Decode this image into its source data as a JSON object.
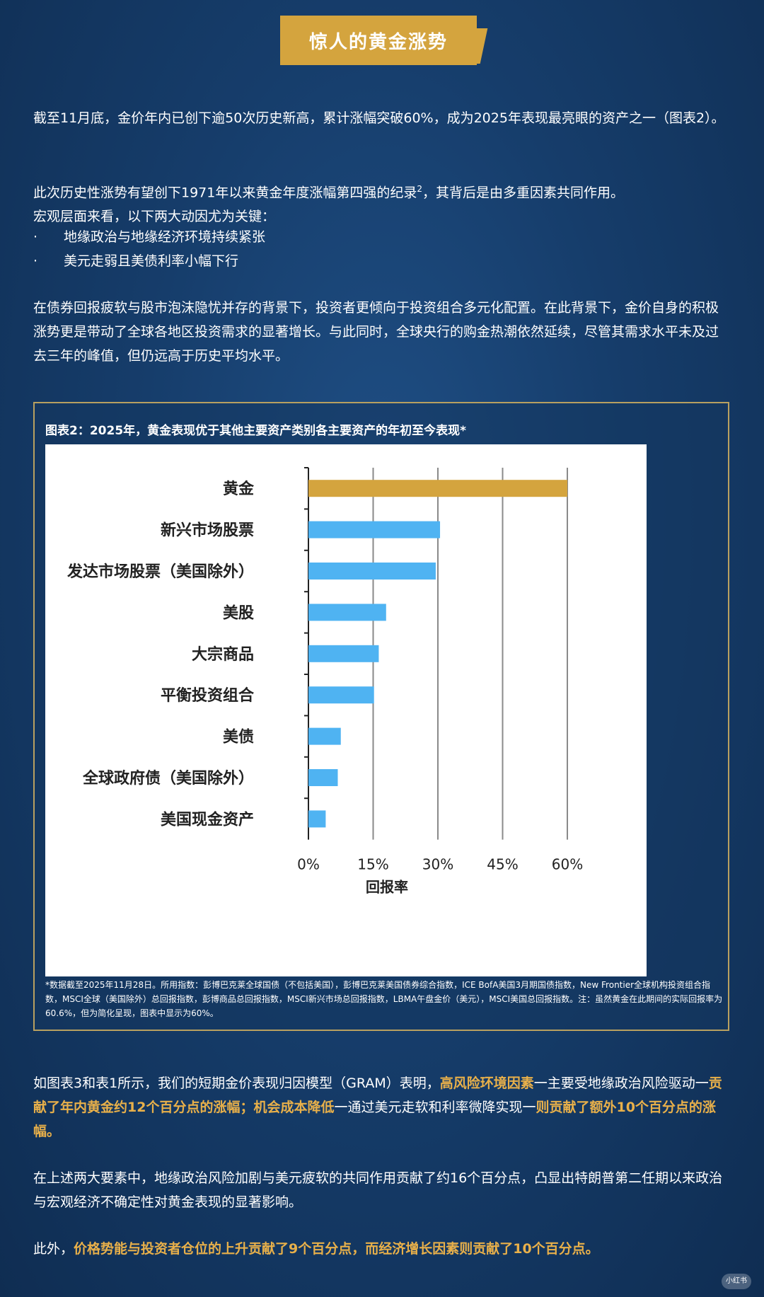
{
  "header": {
    "title": "惊人的黄金涨势"
  },
  "intro": {
    "p1": "截至11月底，金价年内已创下逾50次历史新高，累计涨幅突破60%，成为2025年表现最亮眼的资产之一（图表2）。",
    "p2_line1_a": "此次历史性涨势有望创下1971年以来黄金年度涨幅第四强的纪录",
    "p2_sup": "2",
    "p2_line1_b": "，其背后是由多重因素共同作用。",
    "p2_line2": "宏观层面来看，以下两大动因尤为关键：",
    "bullet_symbol": "·",
    "bullets": [
      "地缘政治与地缘经济环境持续紧张",
      "美元走弱且美债利率小幅下行"
    ],
    "p3": "在债券回报疲软与股市泡沫隐忧并存的背景下，投资者更倾向于投资组合多元化配置。在此背景下，金价自身的积极涨势更是带动了全球各地区投资需求的显著增长。与此同时，全球央行的购金热潮依然延续，尽管其需求水平未及过去三年的峰值，但仍远高于历史平均水平。"
  },
  "chart_section": {
    "title": "图表2：2025年，黄金表现优于其他主要资产类别各主要资产的年初至今表现*",
    "footnote": "*数据截至2025年11月28日。所用指数：彭博巴克莱全球国债（不包括美国），彭博巴克莱美国债券综合指数，ICE BofA美国3月期国债指数，New Frontier全球机构投资组合指数，MSCI全球（美国除外）总回报指数，彭博商品总回报指数，MSCI新兴市场总回报指数，LBMA午盘金价（美元），MSCI美国总回报指数。注：虽然黄金在此期间的实际回报率为60.6%，但为简化呈现，图表中显示为60%。"
  },
  "chart_data": {
    "type": "bar",
    "orientation": "horizontal",
    "categories": [
      "黄金",
      "新兴市场股票",
      "发达市场股票（美国除外）",
      "美股",
      "大宗商品",
      "平衡投资组合",
      "美债",
      "全球政府债（美国除外）",
      "美国现金资产"
    ],
    "values": [
      60,
      30.5,
      29.5,
      18,
      16.3,
      15.2,
      7.5,
      6.8,
      4
    ],
    "xlabel": "回报率",
    "ylabel": "",
    "xlim": [
      0,
      60
    ],
    "x_ticks": [
      "0%",
      "15%",
      "30%",
      "45%",
      "60%"
    ],
    "grid": "vertical",
    "colors": {
      "highlight": "#d4a43e",
      "default": "#4fb3f2"
    }
  },
  "body": {
    "p4_parts": [
      {
        "text": "如图表3和表1所示，我们的短期金价表现归因模型（GRAM）表明，",
        "gold": false
      },
      {
        "text": "高风险环境因素",
        "gold": true
      },
      {
        "text": "一主要受地缘政治风险驱动一",
        "gold": false
      },
      {
        "text": "贡献了年内黄金约12个百分点的涨幅；机会成本降低",
        "gold": true
      },
      {
        "text": "一通过美元走软和利率微降实现一",
        "gold": false
      },
      {
        "text": "则贡献了额外10个百分点的涨幅。",
        "gold": true
      }
    ],
    "p5": "在上述两大要素中，地缘政治风险加剧与美元疲软的共同作用贡献了约16个百分点，凸显出特朗普第二任期以来政治与宏观经济不确定性对黄金表现的显著影响。",
    "p6_parts": [
      {
        "text": "此外，",
        "gold": false
      },
      {
        "text": "价格势能与投资者仓位的上升贡献了9个百分点，而经济增长因素则贡献了10个百分点。",
        "gold": true
      }
    ]
  },
  "watermark": {
    "text": "小红书"
  }
}
